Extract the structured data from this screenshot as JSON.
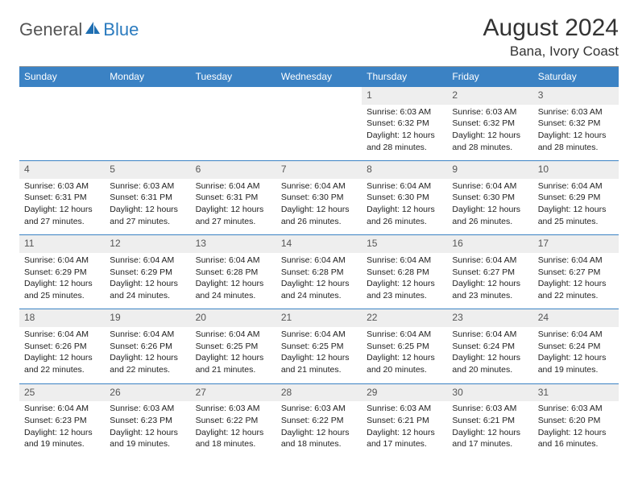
{
  "logo": {
    "general": "General",
    "blue": "Blue"
  },
  "title": "August 2024",
  "location": "Bana, Ivory Coast",
  "colors": {
    "header_bg": "#3b82c4",
    "header_text": "#ffffff",
    "daynum_bg": "#eeeeee",
    "daynum_text": "#555555",
    "row_border": "#3b82c4",
    "logo_gray": "#555555",
    "logo_blue": "#2b7bbf"
  },
  "weekdays": [
    "Sunday",
    "Monday",
    "Tuesday",
    "Wednesday",
    "Thursday",
    "Friday",
    "Saturday"
  ],
  "weeks": [
    [
      null,
      null,
      null,
      null,
      {
        "n": "1",
        "sunrise": "Sunrise: 6:03 AM",
        "sunset": "Sunset: 6:32 PM",
        "d1": "Daylight: 12 hours",
        "d2": "and 28 minutes."
      },
      {
        "n": "2",
        "sunrise": "Sunrise: 6:03 AM",
        "sunset": "Sunset: 6:32 PM",
        "d1": "Daylight: 12 hours",
        "d2": "and 28 minutes."
      },
      {
        "n": "3",
        "sunrise": "Sunrise: 6:03 AM",
        "sunset": "Sunset: 6:32 PM",
        "d1": "Daylight: 12 hours",
        "d2": "and 28 minutes."
      }
    ],
    [
      {
        "n": "4",
        "sunrise": "Sunrise: 6:03 AM",
        "sunset": "Sunset: 6:31 PM",
        "d1": "Daylight: 12 hours",
        "d2": "and 27 minutes."
      },
      {
        "n": "5",
        "sunrise": "Sunrise: 6:03 AM",
        "sunset": "Sunset: 6:31 PM",
        "d1": "Daylight: 12 hours",
        "d2": "and 27 minutes."
      },
      {
        "n": "6",
        "sunrise": "Sunrise: 6:04 AM",
        "sunset": "Sunset: 6:31 PM",
        "d1": "Daylight: 12 hours",
        "d2": "and 27 minutes."
      },
      {
        "n": "7",
        "sunrise": "Sunrise: 6:04 AM",
        "sunset": "Sunset: 6:30 PM",
        "d1": "Daylight: 12 hours",
        "d2": "and 26 minutes."
      },
      {
        "n": "8",
        "sunrise": "Sunrise: 6:04 AM",
        "sunset": "Sunset: 6:30 PM",
        "d1": "Daylight: 12 hours",
        "d2": "and 26 minutes."
      },
      {
        "n": "9",
        "sunrise": "Sunrise: 6:04 AM",
        "sunset": "Sunset: 6:30 PM",
        "d1": "Daylight: 12 hours",
        "d2": "and 26 minutes."
      },
      {
        "n": "10",
        "sunrise": "Sunrise: 6:04 AM",
        "sunset": "Sunset: 6:29 PM",
        "d1": "Daylight: 12 hours",
        "d2": "and 25 minutes."
      }
    ],
    [
      {
        "n": "11",
        "sunrise": "Sunrise: 6:04 AM",
        "sunset": "Sunset: 6:29 PM",
        "d1": "Daylight: 12 hours",
        "d2": "and 25 minutes."
      },
      {
        "n": "12",
        "sunrise": "Sunrise: 6:04 AM",
        "sunset": "Sunset: 6:29 PM",
        "d1": "Daylight: 12 hours",
        "d2": "and 24 minutes."
      },
      {
        "n": "13",
        "sunrise": "Sunrise: 6:04 AM",
        "sunset": "Sunset: 6:28 PM",
        "d1": "Daylight: 12 hours",
        "d2": "and 24 minutes."
      },
      {
        "n": "14",
        "sunrise": "Sunrise: 6:04 AM",
        "sunset": "Sunset: 6:28 PM",
        "d1": "Daylight: 12 hours",
        "d2": "and 24 minutes."
      },
      {
        "n": "15",
        "sunrise": "Sunrise: 6:04 AM",
        "sunset": "Sunset: 6:28 PM",
        "d1": "Daylight: 12 hours",
        "d2": "and 23 minutes."
      },
      {
        "n": "16",
        "sunrise": "Sunrise: 6:04 AM",
        "sunset": "Sunset: 6:27 PM",
        "d1": "Daylight: 12 hours",
        "d2": "and 23 minutes."
      },
      {
        "n": "17",
        "sunrise": "Sunrise: 6:04 AM",
        "sunset": "Sunset: 6:27 PM",
        "d1": "Daylight: 12 hours",
        "d2": "and 22 minutes."
      }
    ],
    [
      {
        "n": "18",
        "sunrise": "Sunrise: 6:04 AM",
        "sunset": "Sunset: 6:26 PM",
        "d1": "Daylight: 12 hours",
        "d2": "and 22 minutes."
      },
      {
        "n": "19",
        "sunrise": "Sunrise: 6:04 AM",
        "sunset": "Sunset: 6:26 PM",
        "d1": "Daylight: 12 hours",
        "d2": "and 22 minutes."
      },
      {
        "n": "20",
        "sunrise": "Sunrise: 6:04 AM",
        "sunset": "Sunset: 6:25 PM",
        "d1": "Daylight: 12 hours",
        "d2": "and 21 minutes."
      },
      {
        "n": "21",
        "sunrise": "Sunrise: 6:04 AM",
        "sunset": "Sunset: 6:25 PM",
        "d1": "Daylight: 12 hours",
        "d2": "and 21 minutes."
      },
      {
        "n": "22",
        "sunrise": "Sunrise: 6:04 AM",
        "sunset": "Sunset: 6:25 PM",
        "d1": "Daylight: 12 hours",
        "d2": "and 20 minutes."
      },
      {
        "n": "23",
        "sunrise": "Sunrise: 6:04 AM",
        "sunset": "Sunset: 6:24 PM",
        "d1": "Daylight: 12 hours",
        "d2": "and 20 minutes."
      },
      {
        "n": "24",
        "sunrise": "Sunrise: 6:04 AM",
        "sunset": "Sunset: 6:24 PM",
        "d1": "Daylight: 12 hours",
        "d2": "and 19 minutes."
      }
    ],
    [
      {
        "n": "25",
        "sunrise": "Sunrise: 6:04 AM",
        "sunset": "Sunset: 6:23 PM",
        "d1": "Daylight: 12 hours",
        "d2": "and 19 minutes."
      },
      {
        "n": "26",
        "sunrise": "Sunrise: 6:03 AM",
        "sunset": "Sunset: 6:23 PM",
        "d1": "Daylight: 12 hours",
        "d2": "and 19 minutes."
      },
      {
        "n": "27",
        "sunrise": "Sunrise: 6:03 AM",
        "sunset": "Sunset: 6:22 PM",
        "d1": "Daylight: 12 hours",
        "d2": "and 18 minutes."
      },
      {
        "n": "28",
        "sunrise": "Sunrise: 6:03 AM",
        "sunset": "Sunset: 6:22 PM",
        "d1": "Daylight: 12 hours",
        "d2": "and 18 minutes."
      },
      {
        "n": "29",
        "sunrise": "Sunrise: 6:03 AM",
        "sunset": "Sunset: 6:21 PM",
        "d1": "Daylight: 12 hours",
        "d2": "and 17 minutes."
      },
      {
        "n": "30",
        "sunrise": "Sunrise: 6:03 AM",
        "sunset": "Sunset: 6:21 PM",
        "d1": "Daylight: 12 hours",
        "d2": "and 17 minutes."
      },
      {
        "n": "31",
        "sunrise": "Sunrise: 6:03 AM",
        "sunset": "Sunset: 6:20 PM",
        "d1": "Daylight: 12 hours",
        "d2": "and 16 minutes."
      }
    ]
  ]
}
